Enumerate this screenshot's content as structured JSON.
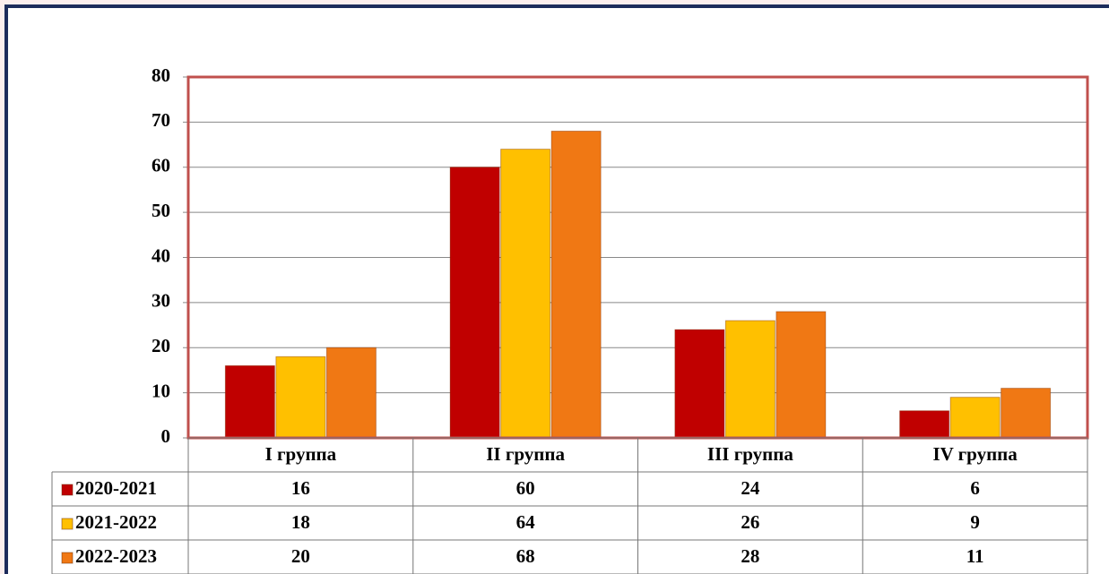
{
  "chart_data": {
    "type": "bar",
    "categories": [
      "I группа",
      "II группа",
      "III группа",
      "IV группа"
    ],
    "series": [
      {
        "name": "2020-2021",
        "color": "#c00000",
        "values": [
          16,
          60,
          24,
          6
        ]
      },
      {
        "name": "2021-2022",
        "color": "#ffc000",
        "values": [
          18,
          64,
          26,
          9
        ]
      },
      {
        "name": "2022-2023",
        "color": "#f07814",
        "values": [
          20,
          68,
          28,
          11
        ]
      }
    ],
    "ylim": [
      0,
      80
    ],
    "yticks": [
      0,
      10,
      20,
      30,
      40,
      50,
      60,
      70,
      80
    ],
    "grid": true,
    "data_table": true
  }
}
